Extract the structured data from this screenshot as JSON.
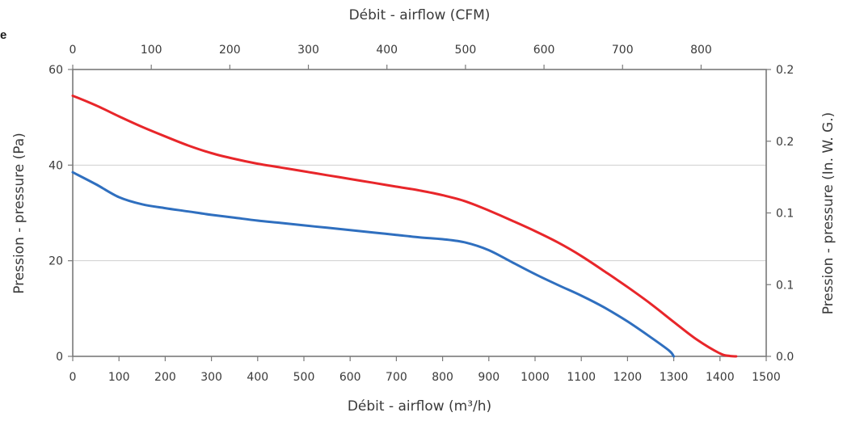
{
  "corner_mark": "e",
  "chart_data": {
    "type": "line",
    "title": "",
    "xlabel": "Débit - airflow (m³/h)",
    "x2label": "Débit - airflow (CFM)",
    "ylabel": "Pression - pressure (Pa)",
    "y2label": "Pression - pressure (In. W. G.)",
    "xlim": [
      0,
      1500
    ],
    "x2lim": [
      0,
      882.9
    ],
    "ylim": [
      0,
      60
    ],
    "y2lim": [
      0,
      0.241
    ],
    "xticks": [
      "0",
      "100",
      "200",
      "300",
      "400",
      "500",
      "600",
      "700",
      "800",
      "900",
      "1000",
      "1100",
      "1200",
      "1300",
      "1400",
      "1500"
    ],
    "x2ticks": [
      "0",
      "100",
      "200",
      "300",
      "400",
      "500",
      "600",
      "700",
      "800"
    ],
    "yticks": [
      "0",
      "20",
      "40",
      "60"
    ],
    "y2ticks": [
      {
        "label": "0.0",
        "pa": 0
      },
      {
        "label": "0.1",
        "pa": 15
      },
      {
        "label": "0.1",
        "pa": 30
      },
      {
        "label": "0.2",
        "pa": 45
      },
      {
        "label": "0.2",
        "pa": 60
      }
    ],
    "grid": "horizontal",
    "series": [
      {
        "color": "#e8262a",
        "x": [
          0,
          50,
          100,
          150,
          200,
          250,
          300,
          350,
          400,
          450,
          500,
          550,
          600,
          650,
          700,
          750,
          800,
          850,
          900,
          950,
          1000,
          1050,
          1100,
          1150,
          1200,
          1250,
          1300,
          1350,
          1400,
          1420,
          1435
        ],
        "y": [
          54.5,
          52.5,
          50.2,
          48,
          46,
          44.1,
          42.5,
          41.3,
          40.3,
          39.5,
          38.7,
          37.9,
          37.1,
          36.3,
          35.5,
          34.7,
          33.7,
          32.4,
          30.5,
          28.4,
          26.2,
          23.8,
          21,
          17.8,
          14.5,
          11,
          7.2,
          3.5,
          0.6,
          0.1,
          0
        ]
      },
      {
        "color": "#2f6fbf",
        "x": [
          0,
          50,
          100,
          150,
          200,
          250,
          300,
          350,
          400,
          450,
          500,
          550,
          600,
          650,
          700,
          750,
          800,
          850,
          900,
          950,
          1000,
          1050,
          1100,
          1150,
          1200,
          1250,
          1290,
          1300
        ],
        "y": [
          38.5,
          36,
          33.3,
          31.8,
          31,
          30.3,
          29.6,
          29,
          28.4,
          27.9,
          27.4,
          26.9,
          26.4,
          25.9,
          25.4,
          24.9,
          24.5,
          23.8,
          22.2,
          19.7,
          17.2,
          14.9,
          12.7,
          10.2,
          7.3,
          4,
          1.2,
          0
        ]
      }
    ]
  }
}
